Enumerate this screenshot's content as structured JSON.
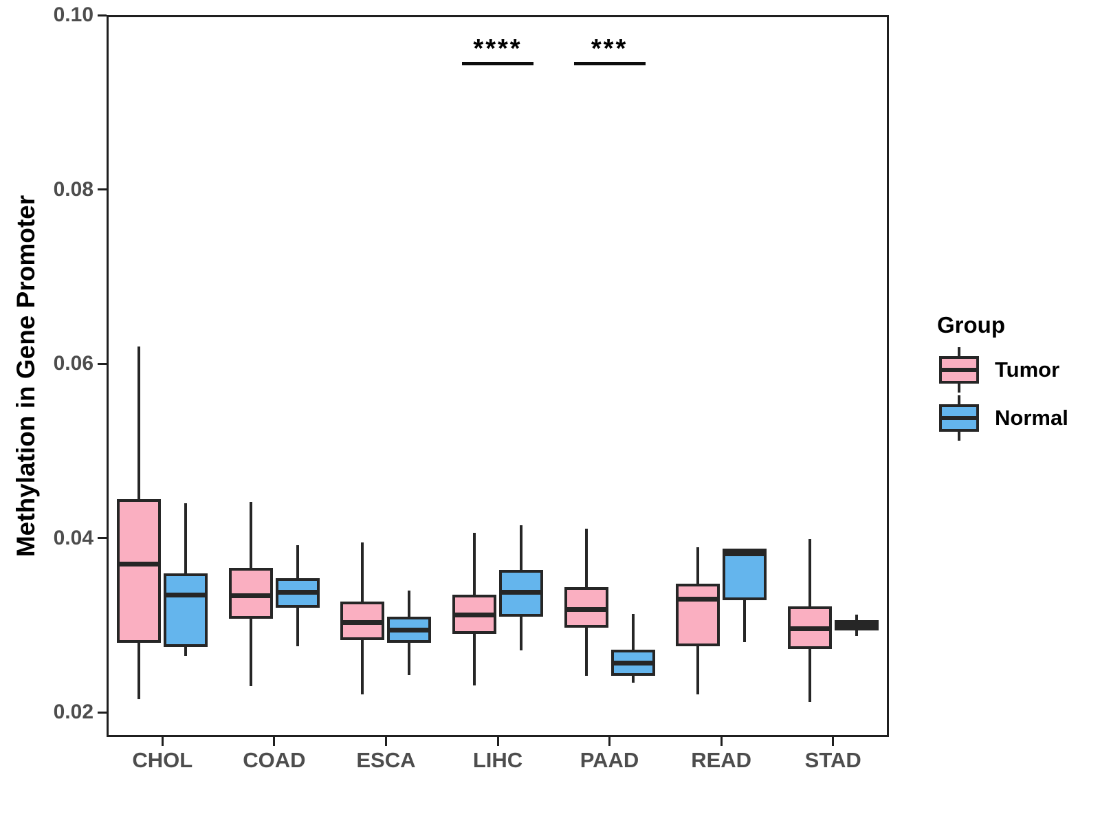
{
  "chart_data": {
    "type": "boxplot",
    "title": "",
    "xlabel": "",
    "ylabel": "Methylation in Gene Promoter",
    "categories": [
      "CHOL",
      "COAD",
      "ESCA",
      "LIHC",
      "PAAD",
      "READ",
      "STAD"
    ],
    "y_tick_labels": [
      "0.10",
      "0.08",
      "0.06",
      "0.04",
      "0.02"
    ],
    "y_tick_values": [
      0.1,
      0.08,
      0.06,
      0.04,
      0.02
    ],
    "ylim": [
      0.0172,
      0.1
    ],
    "grid": "off",
    "legend": {
      "title": "Group",
      "position": "right",
      "entries": [
        {
          "label": "Tumor",
          "color": "#FAAFC1"
        },
        {
          "label": "Normal",
          "color": "#64B5ED"
        }
      ]
    },
    "series": [
      {
        "name": "Tumor",
        "color": "#FAAFC1",
        "boxes": [
          {
            "category": "CHOL",
            "min": 0.0215,
            "q1": 0.028,
            "median": 0.037,
            "q3": 0.0445,
            "max": 0.062
          },
          {
            "category": "COAD",
            "min": 0.023,
            "q1": 0.0308,
            "median": 0.0334,
            "q3": 0.0366,
            "max": 0.0442
          },
          {
            "category": "ESCA",
            "min": 0.0221,
            "q1": 0.0283,
            "median": 0.0303,
            "q3": 0.0327,
            "max": 0.0395
          },
          {
            "category": "LIHC",
            "min": 0.0231,
            "q1": 0.029,
            "median": 0.0312,
            "q3": 0.0335,
            "max": 0.0406
          },
          {
            "category": "PAAD",
            "min": 0.0242,
            "q1": 0.0297,
            "median": 0.0318,
            "q3": 0.0344,
            "max": 0.0411
          },
          {
            "category": "READ",
            "min": 0.0221,
            "q1": 0.0276,
            "median": 0.033,
            "q3": 0.0348,
            "max": 0.039
          },
          {
            "category": "STAD",
            "min": 0.0212,
            "q1": 0.0273,
            "median": 0.0296,
            "q3": 0.0322,
            "max": 0.0399
          }
        ]
      },
      {
        "name": "Normal",
        "color": "#64B5ED",
        "boxes": [
          {
            "category": "CHOL",
            "min": 0.0265,
            "q1": 0.0275,
            "median": 0.0335,
            "q3": 0.036,
            "max": 0.044
          },
          {
            "category": "COAD",
            "min": 0.0276,
            "q1": 0.032,
            "median": 0.0338,
            "q3": 0.0354,
            "max": 0.0392
          },
          {
            "category": "ESCA",
            "min": 0.0243,
            "q1": 0.028,
            "median": 0.0295,
            "q3": 0.031,
            "max": 0.034
          },
          {
            "category": "LIHC",
            "min": 0.0271,
            "q1": 0.031,
            "median": 0.0338,
            "q3": 0.0364,
            "max": 0.0415
          },
          {
            "category": "PAAD",
            "min": 0.0234,
            "q1": 0.0242,
            "median": 0.0257,
            "q3": 0.0272,
            "max": 0.0313
          },
          {
            "category": "READ",
            "min": 0.0281,
            "q1": 0.0329,
            "median": 0.0382,
            "q3": 0.0388,
            "max": 0.0388
          },
          {
            "category": "STAD",
            "min": 0.0288,
            "q1": 0.0294,
            "median": 0.03,
            "q3": 0.0306,
            "max": 0.0312
          }
        ]
      }
    ],
    "significance": [
      {
        "category": "LIHC",
        "label": "****"
      },
      {
        "category": "PAAD",
        "label": "***"
      }
    ]
  },
  "colors": {
    "tumor_fill": "#FAAFC1",
    "normal_fill": "#64B5ED",
    "box_border": "#262626",
    "panel_border": "#1f1f1f",
    "tick_text": "#4d4d4d",
    "background": "#ffffff"
  }
}
